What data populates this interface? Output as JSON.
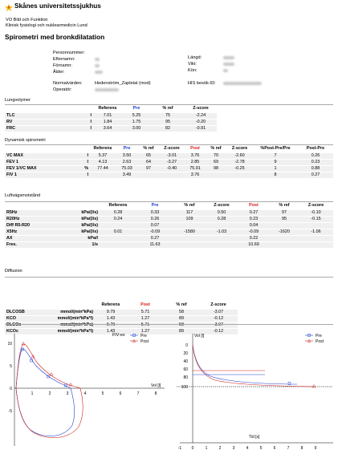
{
  "header": {
    "org": "Skånes universitetssjukhus",
    "dept_line1": "VO Bild och Funktion",
    "dept_line2": "Klinisk fysiologi och nuklearmedicin Lund",
    "title": "Spirometri med bronkdilatation"
  },
  "patient": {
    "labels_left": [
      "Personnummer:",
      "Efternamn:",
      "Förnamn:",
      "Ålder:"
    ],
    "labels_right": [
      "Längd:",
      "Vikt:",
      "Kön:"
    ],
    "normal_label": "Normalvärden:",
    "normal_value": "Hedenström_Zapletal (mod)",
    "operator_label": "Operatör:",
    "his_label": "HIS besök-ID:"
  },
  "lung": {
    "title": "Lungvolymer",
    "headers": [
      "Referens",
      "Pre",
      "% ref",
      "Z-score"
    ],
    "rows": [
      {
        "name": "TLC",
        "unit": "l",
        "vals": [
          "7.01",
          "5.25",
          "75",
          "-2.24"
        ]
      },
      {
        "name": "RV",
        "unit": "l",
        "vals": [
          "1.84",
          "1.75",
          "95",
          "-0.20"
        ]
      },
      {
        "name": "FRC",
        "unit": "l",
        "vals": [
          "3.64",
          "3.00",
          "82",
          "-0.91"
        ]
      }
    ]
  },
  "spiro": {
    "title": "Dynamisk spirometri",
    "headers": [
      "Referens",
      "Pre",
      "% ref",
      "Z-score",
      "Post",
      "% ref",
      "Z-score",
      "%Post-Pre/Pre",
      "Post-Pre"
    ],
    "rows": [
      {
        "name": "VC MAX",
        "unit": "l",
        "vals": [
          "5.37",
          "3.50",
          "65",
          "-3.01",
          "3.76",
          "70",
          "-2.60",
          "7",
          "0.26"
        ]
      },
      {
        "name": "FEV 1",
        "unit": "l",
        "vals": [
          "4.13",
          "2.63",
          "64",
          "-3.27",
          "2.85",
          "69",
          "-2.78",
          "9",
          "0.23"
        ]
      },
      {
        "name": "FEV 1/VC MAX",
        "unit": "%",
        "vals": [
          "77.44",
          "75.03",
          "97",
          "-0.40",
          "75.91",
          "98",
          "-0.25",
          "1",
          "0.88"
        ]
      },
      {
        "name": "FIV 1",
        "unit": "l",
        "vals": [
          "",
          "3.49",
          "",
          "",
          "3.76",
          "",
          "",
          "8",
          "0.27"
        ]
      }
    ]
  },
  "airway": {
    "title": "Luftvägsmotstånd",
    "headers": [
      "Referens",
      "Pre",
      "% ref",
      "Z-score",
      "Post",
      "% ref",
      "Z-score"
    ],
    "rows": [
      {
        "name": "R5Hz",
        "unit": "kPa/(l/s)",
        "vals": [
          "0.28",
          "0.33",
          "117",
          "0.50",
          "0.27",
          "97",
          "-0.10"
        ]
      },
      {
        "name": "R20Hz",
        "unit": "kPa/(l/s)",
        "vals": [
          "0.24",
          "0.26",
          "109",
          "0.28",
          "0.23",
          "95",
          "-0.15"
        ]
      },
      {
        "name": "Diff R5-R20",
        "unit": "kPa/(l/s)",
        "vals": [
          "",
          "0.07",
          "",
          "",
          "0.04",
          "",
          ""
        ]
      },
      {
        "name": "X5Hz",
        "unit": "kPa/(l/s)",
        "vals": [
          "0.01",
          "-0.09",
          "-1580",
          "-1.03",
          "-0.09",
          "-1620",
          "-1.06"
        ]
      },
      {
        "name": "AX",
        "unit": "kPa/l",
        "vals": [
          "",
          "0.27",
          "",
          "",
          "0.22",
          "",
          ""
        ]
      },
      {
        "name": "Fres.",
        "unit": "1/s",
        "vals": [
          "",
          "11.63",
          "",
          "",
          "10.69",
          "",
          ""
        ]
      }
    ]
  },
  "diffusion": {
    "title": "Diffusion",
    "headers": [
      "Referens",
      "Post",
      "% ref",
      "Z-score"
    ],
    "rows": [
      {
        "name": "DLCOSB",
        "unit": "mmol/(min*kPa)",
        "vals": [
          "9.79",
          "5.71",
          "58",
          "-3.07"
        ]
      },
      {
        "name": "KCO",
        "unit": "mmol/(min*kPa*l)",
        "vals": [
          "1.43",
          "1.27",
          "89",
          "-0.12"
        ]
      },
      {
        "name": "DLCOc",
        "unit": "mmol/(min*kPa)",
        "vals": [
          "9.79",
          "5.71",
          "58",
          "-3.07"
        ]
      },
      {
        "name": "KCOc",
        "unit": "mmol/(min*kPa*l)",
        "vals": [
          "1.43",
          "1.27",
          "89",
          "-0.12"
        ]
      }
    ]
  },
  "charts": {
    "legend_pre": "Pre",
    "legend_post": "Post",
    "color_pre": "#2040d0",
    "color_post": "#d02020",
    "left_title": "FIV-ex",
    "left_xlabel": "Vol [l]",
    "left_yticks": [
      "10",
      "5",
      "0",
      "-5"
    ],
    "left_xticks": [
      "1",
      "2",
      "3",
      "4",
      "5",
      "6",
      "7",
      "8"
    ],
    "right_ylabel": "Vol [l]",
    "right_xlabel": "Tid [s]",
    "right_yticks": [
      "0",
      "20",
      "40",
      "60",
      "80",
      "100"
    ],
    "right_xticks": [
      "-1",
      "0",
      "1",
      "2",
      "3",
      "4",
      "5",
      "6",
      "7",
      "8",
      "9"
    ]
  }
}
